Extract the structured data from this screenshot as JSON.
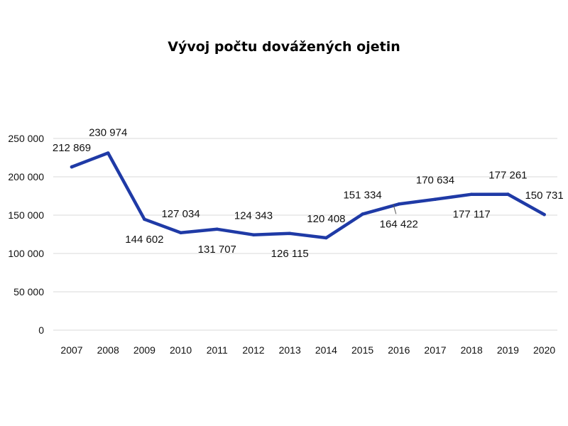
{
  "chart_data": {
    "type": "line",
    "title": "Vývoj počtu dovážených ojetin",
    "xlabel": "",
    "ylabel": "",
    "categories": [
      "2007",
      "2008",
      "2009",
      "2010",
      "2011",
      "2012",
      "2013",
      "2014",
      "2015",
      "2016",
      "2017",
      "2018",
      "2019",
      "2020"
    ],
    "values": [
      212869,
      230974,
      144602,
      127034,
      131707,
      124343,
      126115,
      120408,
      151334,
      164422,
      170634,
      177117,
      177261,
      150731
    ],
    "value_labels": [
      "212 869",
      "230 974",
      "144 602",
      "127 034",
      "131 707",
      "124 343",
      "126 115",
      "120 408",
      "151 334",
      "164 422",
      "170 634",
      "177 117",
      "177 261",
      "150 731"
    ],
    "ylim": [
      0,
      250000
    ],
    "yticks": [
      0,
      50000,
      100000,
      150000,
      200000,
      250000
    ],
    "ytick_labels": [
      "0",
      "50 000",
      "100 000",
      "150 000",
      "200 000",
      "250 000"
    ],
    "grid": true,
    "legend": "none",
    "line_color": "#1f3aa6",
    "grid_color": "#d9d9d9"
  }
}
